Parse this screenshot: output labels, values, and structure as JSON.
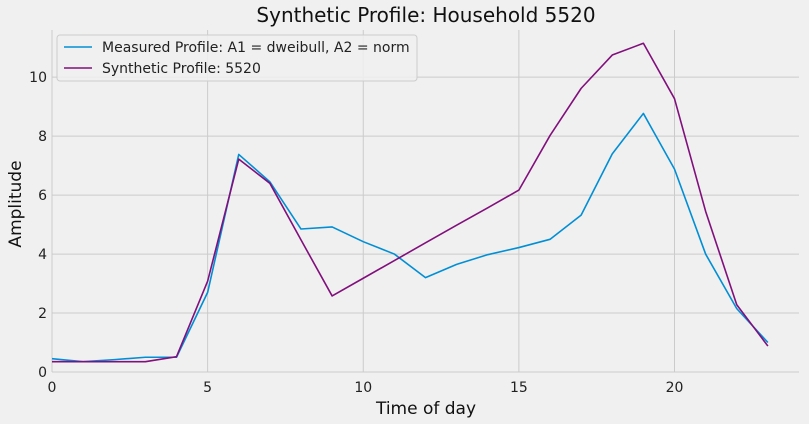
{
  "chart_data": {
    "type": "line",
    "title": "Synthetic Profile: Household 5520",
    "xlabel": "Time of day",
    "ylabel": "Amplitude",
    "xlim": [
      0,
      24
    ],
    "ylim": [
      0,
      11.6
    ],
    "x_ticks": [
      0,
      5,
      10,
      15,
      20
    ],
    "y_ticks": [
      0,
      2,
      4,
      6,
      8,
      10
    ],
    "grid": true,
    "legend_position": "top-left",
    "x": [
      0,
      1,
      2,
      3,
      4,
      5,
      6,
      7,
      8,
      9,
      10,
      11,
      12,
      13,
      14,
      15,
      16,
      17,
      18,
      19,
      20,
      21,
      22,
      23
    ],
    "series": [
      {
        "name": "Measured Profile: A1 = dweibull, A2 = norm",
        "color": "#008fd5",
        "values": [
          0.45,
          0.35,
          0.42,
          0.5,
          0.5,
          2.7,
          7.38,
          6.45,
          4.85,
          4.92,
          4.42,
          4.0,
          3.2,
          3.65,
          3.98,
          4.22,
          4.5,
          5.32,
          7.4,
          8.77,
          6.88,
          4.0,
          2.15,
          1.0
        ]
      },
      {
        "name": "Synthetic Profile: 5520",
        "color": "#810f7c",
        "values": [
          0.35,
          0.35,
          0.35,
          0.35,
          0.52,
          3.08,
          7.22,
          6.4,
          4.48,
          2.58,
          3.18,
          3.78,
          4.38,
          4.98,
          5.57,
          6.17,
          8.02,
          9.62,
          10.75,
          11.15,
          9.27,
          5.45,
          2.28,
          0.88
        ]
      }
    ]
  }
}
